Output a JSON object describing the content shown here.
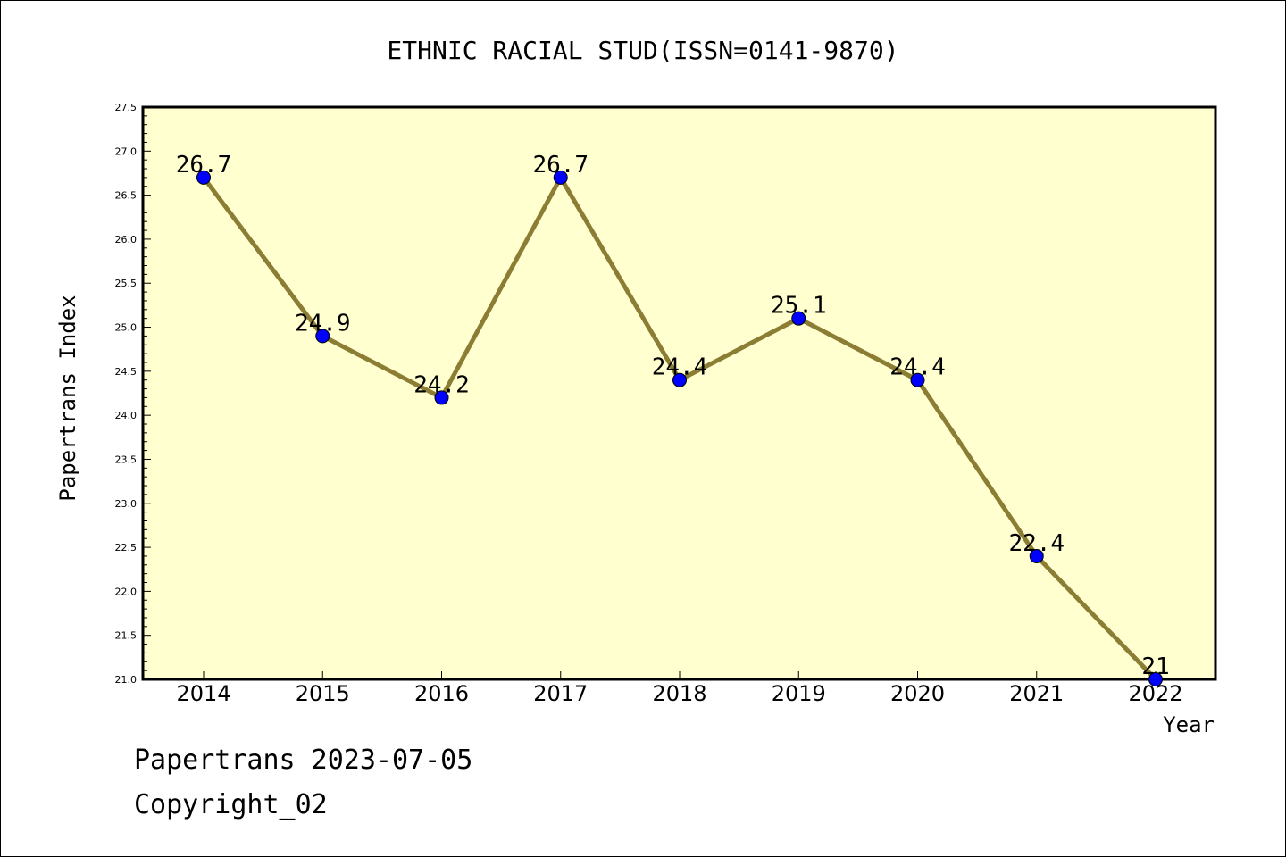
{
  "colors": {
    "plot_background": "#ffffd0",
    "line": "#8b7d34",
    "marker": "#0000ff",
    "frame": "#000000"
  },
  "footer": {
    "line1": "Papertrans 2023-07-05",
    "line2": "Copyright_02"
  },
  "chart_data": {
    "type": "line",
    "title": "ETHNIC RACIAL STUD(ISSN=0141-9870)",
    "xlabel": "Year",
    "ylabel": "Papertrans Index",
    "categories": [
      "2014",
      "2015",
      "2016",
      "2017",
      "2018",
      "2019",
      "2020",
      "2021",
      "2022"
    ],
    "series": [
      {
        "values": [
          26.7,
          24.9,
          24.2,
          26.7,
          24.4,
          25.1,
          24.4,
          22.4,
          21.0
        ]
      }
    ],
    "data_labels": [
      "26.7",
      "24.9",
      "24.2",
      "26.7",
      "24.4",
      "25.1",
      "24.4",
      "22.4",
      "21"
    ],
    "ylim": [
      21.0,
      27.5
    ],
    "yticks": [
      "21.0",
      "21.5",
      "22.0",
      "22.5",
      "23.0",
      "23.5",
      "24.0",
      "24.5",
      "25.0",
      "25.5",
      "26.0",
      "26.5",
      "27.0",
      "27.5"
    ],
    "grid": false,
    "legend": "none"
  }
}
